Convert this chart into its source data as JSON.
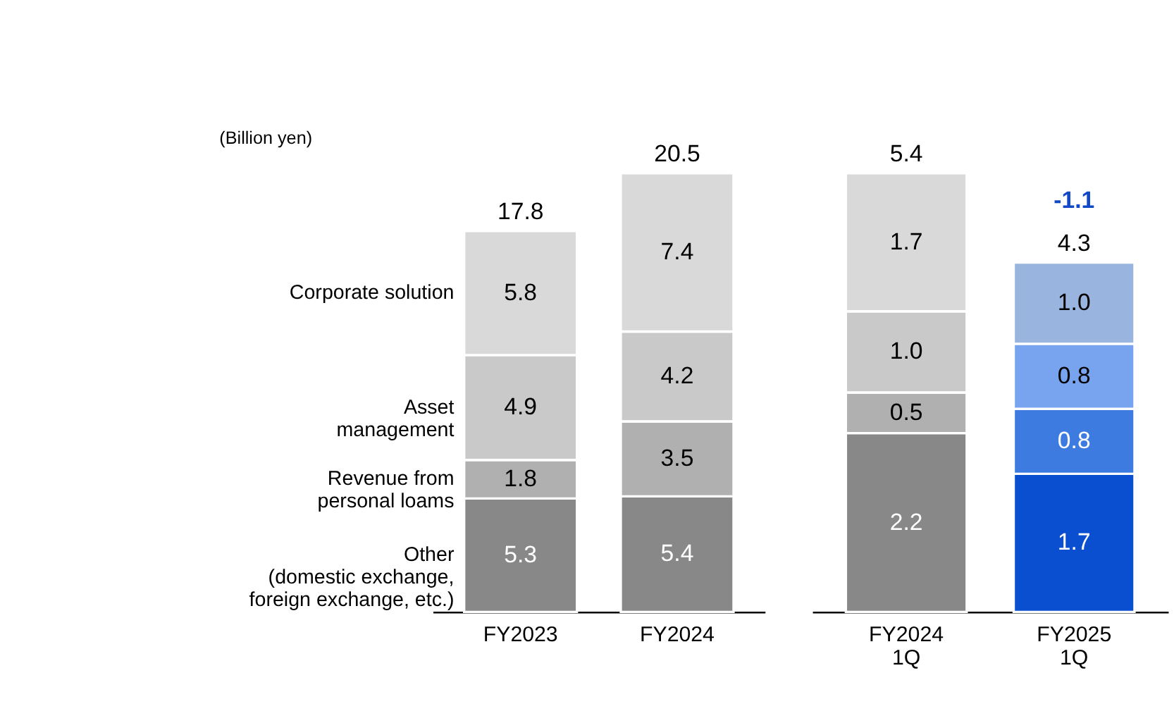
{
  "chart_data": [
    {
      "type": "bar",
      "stacked": true,
      "categories": [
        "FY2023",
        "FY2024"
      ],
      "series": [
        {
          "name": "Other\n(domestic exchange,\nforeign exchange, etc.)",
          "colors": [
            "#888888",
            "#888888"
          ],
          "values": [
            5.3,
            5.4
          ],
          "value_labels": [
            "5.3",
            "5.4"
          ]
        },
        {
          "name": "Revenue from\npersonal loams",
          "colors": [
            "#b0b0b0",
            "#b0b0b0"
          ],
          "values": [
            1.8,
            3.5
          ],
          "value_labels": [
            "1.8",
            "3.5"
          ]
        },
        {
          "name": "Asset\nmanagement",
          "colors": [
            "#c9c9c9",
            "#c9c9c9"
          ],
          "values": [
            4.9,
            4.2
          ],
          "value_labels": [
            "4.9",
            "4.2"
          ]
        },
        {
          "name": "Corporate solution",
          "colors": [
            "#d9d9d9",
            "#d9d9d9"
          ],
          "values": [
            5.8,
            7.4
          ],
          "value_labels": [
            "5.8",
            "7.4"
          ]
        }
      ],
      "totals": [
        "17.8",
        "20.5"
      ],
      "annotations": [
        "(Billion yen)"
      ]
    },
    {
      "type": "bar",
      "stacked": true,
      "categories": [
        "FY2024 1Q",
        "FY2025 1Q"
      ],
      "series": [
        {
          "colors": [
            "#888888",
            "#0a4fd0"
          ],
          "values": [
            2.2,
            1.7
          ],
          "value_labels": [
            "2.2",
            "1.7"
          ]
        },
        {
          "colors": [
            "#b0b0b0",
            "#3d7be0"
          ],
          "values": [
            0.5,
            0.8
          ],
          "value_labels": [
            "0.5",
            "0.8"
          ]
        },
        {
          "colors": [
            "#c9c9c9",
            "#78a3ee"
          ],
          "values": [
            1.0,
            0.8
          ],
          "value_labels": [
            "1.0",
            "0.8"
          ]
        },
        {
          "colors": [
            "#d9d9d9",
            "#9ab4e0"
          ],
          "values": [
            1.7,
            1.0
          ],
          "value_labels": [
            "1.7",
            "1.0"
          ]
        }
      ],
      "totals": [
        "5.4",
        "4.3"
      ],
      "annotations": [
        "-1.1"
      ]
    }
  ]
}
